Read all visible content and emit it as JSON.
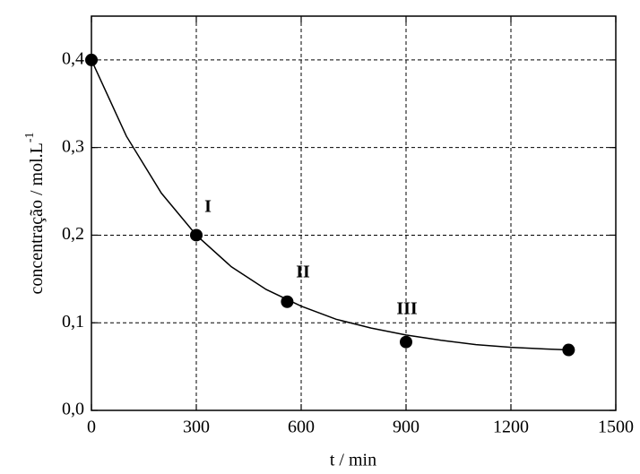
{
  "chart_data": {
    "type": "scatter",
    "xlabel": "t / min",
    "ylabel": "concentração / mol.L",
    "ylabel_sup": "-1",
    "x": [
      0,
      300,
      560,
      900,
      1365
    ],
    "values": [
      0.4,
      0.2,
      0.124,
      0.078,
      0.069
    ],
    "color": "#000000",
    "curve": {
      "x": [
        0,
        100,
        200,
        300,
        400,
        500,
        600,
        700,
        800,
        900,
        1000,
        1100,
        1200,
        1300,
        1365
      ],
      "values": [
        0.4,
        0.313,
        0.248,
        0.2,
        0.164,
        0.138,
        0.119,
        0.104,
        0.094,
        0.086,
        0.08,
        0.075,
        0.072,
        0.07,
        0.069
      ]
    },
    "annotations": [
      "I",
      "II",
      "III"
    ],
    "xlim": [
      0,
      1500
    ],
    "xticks": [
      0,
      300,
      600,
      900,
      1200,
      1500
    ],
    "ylim": [
      0,
      0.45
    ],
    "yticks": [
      {
        "value": 0,
        "label": "0,0"
      },
      {
        "value": 0.1,
        "label": "0,1"
      },
      {
        "value": 0.2,
        "label": "0,2"
      },
      {
        "value": 0.3,
        "label": "0,3"
      },
      {
        "value": 0.4,
        "label": "0,4"
      }
    ],
    "grid": true
  }
}
